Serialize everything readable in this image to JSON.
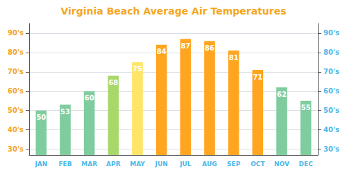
{
  "chart_data": {
    "type": "bar",
    "title": "Virginia Beach Average Air Temperatures",
    "title_color": "#F5A623",
    "categories": [
      "JAN",
      "FEB",
      "MAR",
      "APR",
      "MAY",
      "JUN",
      "JUL",
      "AUG",
      "SEP",
      "OCT",
      "NOV",
      "DEC"
    ],
    "values": [
      50,
      53,
      60,
      68,
      75,
      84,
      87,
      86,
      81,
      71,
      62,
      55
    ],
    "colors": [
      "#7FCC9E",
      "#7FCC9E",
      "#7FCC9E",
      "#A8D86A",
      "#FFE566",
      "#FFA520",
      "#FFA520",
      "#FFA520",
      "#FFA520",
      "#FFA520",
      "#7FCC9E",
      "#7FCC9E"
    ],
    "data_labels": true,
    "ylim": [
      27,
      95
    ],
    "yticks": [
      {
        "value": 30,
        "label": "30's"
      },
      {
        "value": 40,
        "label": "40's"
      },
      {
        "value": 50,
        "label": "50's"
      },
      {
        "value": 60,
        "label": "60's"
      },
      {
        "value": 70,
        "label": "70's"
      },
      {
        "value": 80,
        "label": "80's"
      },
      {
        "value": 90,
        "label": "90's"
      }
    ],
    "y2lim": [
      27,
      95
    ],
    "y2ticks": [
      {
        "value": 30,
        "label": "30's"
      },
      {
        "value": 40,
        "label": "40's"
      },
      {
        "value": 50,
        "label": "50's"
      },
      {
        "value": 60,
        "label": "60's"
      },
      {
        "value": 70,
        "label": "70's"
      },
      {
        "value": 80,
        "label": "80's"
      },
      {
        "value": 90,
        "label": "90's"
      }
    ],
    "ytick_color": "#F5A623",
    "y2tick_color": "#4DB8E8",
    "xtick_color": "#4DB8E8",
    "value_label_color": "#FFFFFF",
    "grid": true
  }
}
